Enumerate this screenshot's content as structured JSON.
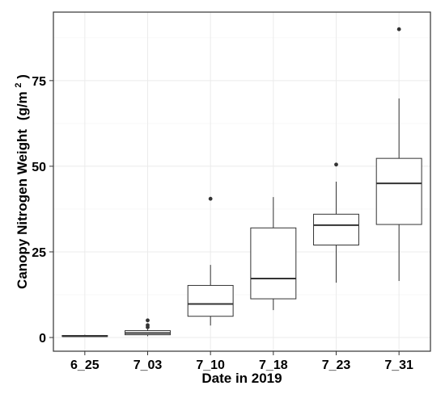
{
  "chart_data": {
    "type": "boxplot",
    "title": "",
    "xlabel": "Date in 2019",
    "ylabel": "Canopy Nitrogen Weight",
    "ylabel_unit": "(g/m",
    "ylabel_superscript": "2",
    "ylabel_close": ")",
    "ylim": [
      -4,
      95
    ],
    "y_ticks": [
      0,
      25,
      50,
      75
    ],
    "y_tick_labels": [
      "0",
      "25",
      "50",
      "75"
    ],
    "grid": true,
    "legend": "none",
    "categories": [
      "6_25",
      "7_03",
      "7_10",
      "7_18",
      "7_23",
      "7_31"
    ],
    "boxes": [
      {
        "category": "6_25",
        "whisker_low": 0.2,
        "q1": 0.3,
        "median": 0.4,
        "q3": 0.6,
        "whisker_high": 0.8,
        "outliers": []
      },
      {
        "category": "7_03",
        "whisker_low": 0.4,
        "q1": 0.8,
        "median": 1.3,
        "q3": 2.0,
        "whisker_high": 2.4,
        "outliers": [
          3.0,
          3.6,
          5.0
        ]
      },
      {
        "category": "7_10",
        "whisker_low": 3.5,
        "q1": 6.2,
        "median": 9.8,
        "q3": 15.2,
        "whisker_high": 21.2,
        "outliers": [
          40.5
        ]
      },
      {
        "category": "7_18",
        "whisker_low": 8.0,
        "q1": 11.3,
        "median": 17.2,
        "q3": 32.0,
        "whisker_high": 41.0,
        "outliers": []
      },
      {
        "category": "7_23",
        "whisker_low": 16.0,
        "q1": 27.0,
        "median": 32.8,
        "q3": 36.0,
        "whisker_high": 45.5,
        "outliers": [
          50.5
        ]
      },
      {
        "category": "7_31",
        "whisker_low": 16.5,
        "q1": 33.0,
        "median": 45.0,
        "q3": 52.3,
        "whisker_high": 69.8,
        "outliers": [
          90.0
        ]
      }
    ],
    "colors": {
      "box_fill": "#ffffff",
      "line": "#333333",
      "grid": "#ebebeb"
    }
  }
}
